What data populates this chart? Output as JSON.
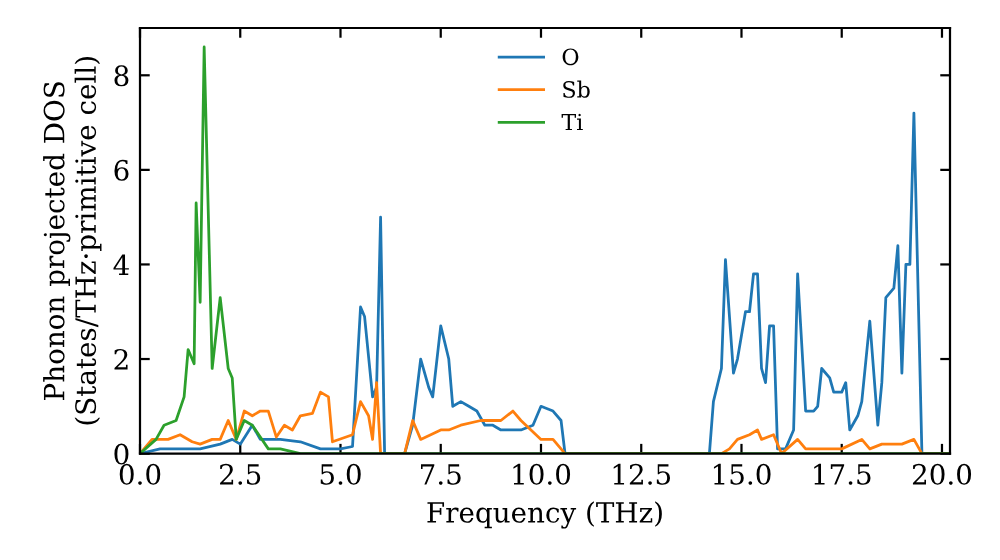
{
  "chart_data": {
    "type": "line",
    "xlabel": "Frequency (THz)",
    "ylabel": "Phonon projected DOS\n(States/THz·primitive cell)",
    "xlim": [
      0,
      20.2
    ],
    "ylim": [
      0,
      9
    ],
    "xticks": [
      {
        "value": 0,
        "label": "0.0"
      },
      {
        "value": 2.5,
        "label": "2.5"
      },
      {
        "value": 5,
        "label": "5.0"
      },
      {
        "value": 7.5,
        "label": "7.5"
      },
      {
        "value": 10,
        "label": "10.0"
      },
      {
        "value": 12.5,
        "label": "12.5"
      },
      {
        "value": 15,
        "label": "15.0"
      },
      {
        "value": 17.5,
        "label": "17.5"
      },
      {
        "value": 20,
        "label": "20.0"
      }
    ],
    "yticks": [
      0,
      2,
      4,
      6,
      8
    ],
    "grid": false,
    "legend": "top",
    "marker": "none",
    "line_style": "solid",
    "series": [
      {
        "name": "O",
        "color": "#1f77b4",
        "x": [
          0,
          0.5,
          1,
          1.5,
          2,
          2.3,
          2.5,
          2.8,
          3.0,
          3.5,
          4,
          4.5,
          5,
          5.3,
          5.5,
          5.6,
          5.8,
          5.9,
          6.0,
          6.1,
          6.6,
          6.8,
          7.0,
          7.2,
          7.3,
          7.5,
          7.7,
          7.8,
          8.0,
          8.2,
          8.4,
          8.6,
          8.8,
          9.0,
          9.5,
          9.8,
          10.0,
          10.3,
          10.5,
          10.6,
          14.2,
          14.3,
          14.5,
          14.6,
          14.8,
          14.9,
          15.1,
          15.2,
          15.3,
          15.4,
          15.5,
          15.6,
          15.7,
          15.8,
          15.9,
          16.1,
          16.3,
          16.4,
          16.6,
          16.8,
          16.9,
          17.0,
          17.2,
          17.3,
          17.5,
          17.6,
          17.7,
          17.9,
          18.0,
          18.2,
          18.4,
          18.5,
          18.6,
          18.8,
          18.9,
          19.0,
          19.1,
          19.2,
          19.3,
          19.5,
          20.2
        ],
        "values": [
          0,
          0.1,
          0.1,
          0.1,
          0.2,
          0.3,
          0.2,
          0.6,
          0.3,
          0.3,
          0.25,
          0.1,
          0.1,
          0.15,
          3.1,
          2.9,
          1.2,
          1.4,
          5.0,
          0,
          0,
          0.6,
          2.0,
          1.4,
          1.2,
          2.7,
          2.0,
          1.0,
          1.1,
          1.0,
          0.9,
          0.6,
          0.6,
          0.5,
          0.5,
          0.6,
          1.0,
          0.9,
          0.7,
          0,
          0,
          1.1,
          1.8,
          4.1,
          1.7,
          2.0,
          3.0,
          3.0,
          3.8,
          3.8,
          1.8,
          1.5,
          2.7,
          2.7,
          0.1,
          0.1,
          0.5,
          3.8,
          0.9,
          0.9,
          1.0,
          1.8,
          1.6,
          1.3,
          1.3,
          1.5,
          0.5,
          0.8,
          1.1,
          2.8,
          0.6,
          1.5,
          3.3,
          3.5,
          4.4,
          1.7,
          4.0,
          4.0,
          7.2,
          0,
          0
        ]
      },
      {
        "name": "Sb",
        "color": "#ff7f0e",
        "x": [
          0,
          0.3,
          0.7,
          1.0,
          1.3,
          1.5,
          1.8,
          2.0,
          2.2,
          2.4,
          2.6,
          2.8,
          3.0,
          3.2,
          3.4,
          3.6,
          3.8,
          4.0,
          4.3,
          4.5,
          4.7,
          4.8,
          5.3,
          5.5,
          5.7,
          5.8,
          5.9,
          6.0,
          6.6,
          6.8,
          7.0,
          7.5,
          7.7,
          8.0,
          8.5,
          9.0,
          9.3,
          9.5,
          10.0,
          10.3,
          10.6,
          14.5,
          14.7,
          14.9,
          15.2,
          15.4,
          15.5,
          15.8,
          16.0,
          16.4,
          16.6,
          17.0,
          17.5,
          18.0,
          18.2,
          18.5,
          19.0,
          19.3,
          19.5,
          20.2
        ],
        "values": [
          0,
          0.3,
          0.3,
          0.4,
          0.25,
          0.2,
          0.3,
          0.3,
          0.7,
          0.3,
          0.9,
          0.8,
          0.9,
          0.9,
          0.35,
          0.6,
          0.5,
          0.8,
          0.85,
          1.3,
          1.2,
          0.25,
          0.4,
          1.1,
          0.8,
          0.3,
          1.5,
          0,
          0,
          0.7,
          0.3,
          0.5,
          0.5,
          0.6,
          0.7,
          0.7,
          0.9,
          0.7,
          0.3,
          0.3,
          0,
          0,
          0.1,
          0.3,
          0.4,
          0.5,
          0.3,
          0.4,
          0,
          0.3,
          0.1,
          0.1,
          0.1,
          0.3,
          0.1,
          0.2,
          0.2,
          0.3,
          0,
          0
        ]
      },
      {
        "name": "Ti",
        "color": "#2ca02c",
        "x": [
          0,
          0.4,
          0.6,
          0.9,
          1.1,
          1.2,
          1.35,
          1.4,
          1.5,
          1.6,
          1.8,
          2.0,
          2.2,
          2.3,
          2.4,
          2.6,
          2.8,
          3.0,
          3.2,
          3.5,
          4.0,
          20.2
        ],
        "values": [
          0,
          0.3,
          0.6,
          0.7,
          1.2,
          2.2,
          1.9,
          5.3,
          3.2,
          8.6,
          1.8,
          3.3,
          1.8,
          1.6,
          0.3,
          0.7,
          0.6,
          0.35,
          0.1,
          0.1,
          0,
          0
        ]
      }
    ]
  }
}
